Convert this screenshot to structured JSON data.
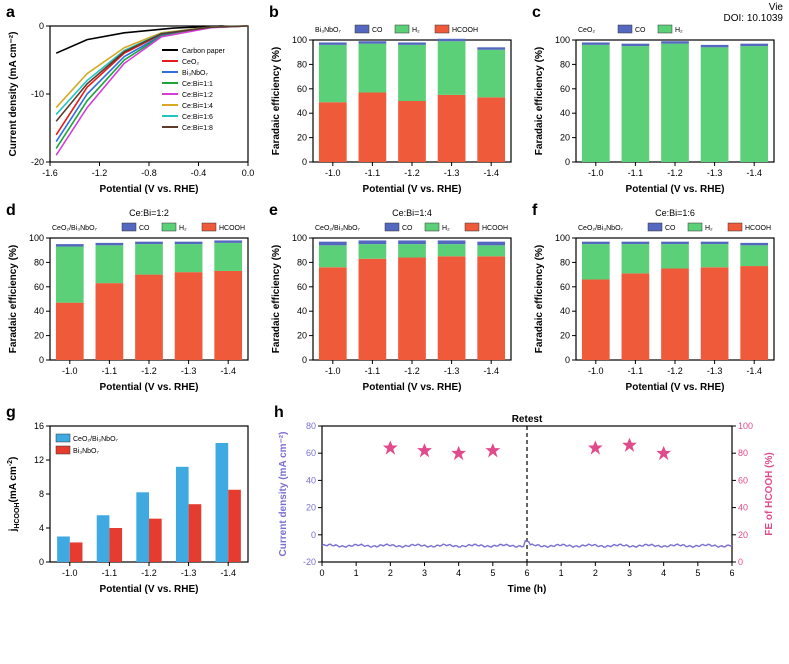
{
  "meta": {
    "view_label": "Vie",
    "doi": "DOI: 10.1039"
  },
  "colors": {
    "co": "#5568c0",
    "h2": "#5bd079",
    "hcooh": "#ef5a3a",
    "ceo2_bar": "#3fa9e2",
    "bi3_bar": "#e63c2f",
    "h_current": "#7a6fd1",
    "h_fe_star": "#e14b8b",
    "grid_gray": "#cccccc",
    "text": "#000000",
    "bg": "#ffffff"
  },
  "panel_a": {
    "letter": "a",
    "xlabel": "Potential (V vs. RHE)",
    "ylabel": "Current density (mA cm⁻²)",
    "xlim": [
      -1.6,
      0.0
    ],
    "xticks": [
      -1.6,
      -1.2,
      -0.8,
      -0.4,
      0.0
    ],
    "ylim": [
      -20,
      0
    ],
    "yticks": [
      -20,
      -10,
      0
    ],
    "series": [
      {
        "label": "Carbon paper",
        "color": "#000000",
        "pts": [
          [
            -1.55,
            -4
          ],
          [
            -1.3,
            -2
          ],
          [
            -1.0,
            -1
          ],
          [
            -0.6,
            -0.3
          ],
          [
            -0.2,
            0
          ]
        ]
      },
      {
        "label": "CeO₂",
        "color": "#e11d1d",
        "pts": [
          [
            -1.55,
            -16
          ],
          [
            -1.3,
            -9
          ],
          [
            -1.0,
            -4
          ],
          [
            -0.7,
            -1.2
          ],
          [
            -0.3,
            -0.2
          ],
          [
            0,
            0
          ]
        ]
      },
      {
        "label": "Bi₃NbO₇",
        "color": "#2b6fe0",
        "pts": [
          [
            -1.55,
            -17
          ],
          [
            -1.3,
            -10
          ],
          [
            -1.0,
            -4.5
          ],
          [
            -0.7,
            -1.4
          ],
          [
            -0.3,
            -0.2
          ],
          [
            0,
            0
          ]
        ]
      },
      {
        "label": "Ce:Bi=1:1",
        "color": "#1aa53a",
        "pts": [
          [
            -1.55,
            -18
          ],
          [
            -1.3,
            -11
          ],
          [
            -1.0,
            -5
          ],
          [
            -0.7,
            -1.5
          ],
          [
            -0.3,
            -0.2
          ],
          [
            0,
            0
          ]
        ]
      },
      {
        "label": "Ce:Bi=1:2",
        "color": "#d53fd8",
        "pts": [
          [
            -1.55,
            -19
          ],
          [
            -1.3,
            -12
          ],
          [
            -1.0,
            -5.5
          ],
          [
            -0.7,
            -1.6
          ],
          [
            -0.3,
            -0.25
          ],
          [
            0,
            0
          ]
        ]
      },
      {
        "label": "Ce:Bi=1:4",
        "color": "#d8a824",
        "pts": [
          [
            -1.55,
            -12
          ],
          [
            -1.3,
            -7
          ],
          [
            -1.0,
            -3.2
          ],
          [
            -0.7,
            -1.0
          ],
          [
            -0.3,
            -0.15
          ],
          [
            0,
            0
          ]
        ]
      },
      {
        "label": "Ce:Bi=1:6",
        "color": "#22c5c0",
        "pts": [
          [
            -1.55,
            -13
          ],
          [
            -1.3,
            -8
          ],
          [
            -1.0,
            -3.6
          ],
          [
            -0.7,
            -1.1
          ],
          [
            -0.3,
            -0.18
          ],
          [
            0,
            0
          ]
        ]
      },
      {
        "label": "Ce:Bi=1:8",
        "color": "#5e3a2a",
        "pts": [
          [
            -1.55,
            -14
          ],
          [
            -1.3,
            -8.5
          ],
          [
            -1.0,
            -3.8
          ],
          [
            -0.7,
            -1.15
          ],
          [
            -0.3,
            -0.18
          ],
          [
            0,
            0
          ]
        ]
      }
    ]
  },
  "fe_common": {
    "xlabel": "Potential (V vs. RHE)",
    "ylabel": "Faradaic efficiency (%)",
    "xcats": [
      "-1.0",
      "-1.1",
      "-1.2",
      "-1.3",
      "-1.4"
    ],
    "ylim": [
      0,
      100
    ],
    "yticks": [
      0,
      20,
      40,
      60,
      80,
      100
    ],
    "legend_labels": {
      "co": "CO",
      "h2": "H₂",
      "hcooh": "HCOOH"
    }
  },
  "panel_b": {
    "letter": "b",
    "title": "Bi₃NbO₇",
    "legend": [
      "co",
      "h2",
      "hcooh"
    ],
    "data": [
      {
        "co": 2,
        "h2": 47,
        "hcooh": 49
      },
      {
        "co": 2,
        "h2": 40,
        "hcooh": 57
      },
      {
        "co": 2,
        "h2": 46,
        "hcooh": 50
      },
      {
        "co": 2,
        "h2": 44,
        "hcooh": 55
      },
      {
        "co": 2,
        "h2": 39,
        "hcooh": 53
      }
    ]
  },
  "panel_c": {
    "letter": "c",
    "title": "CeO₂",
    "legend": [
      "co",
      "h2"
    ],
    "data": [
      {
        "co": 2,
        "h2": 96
      },
      {
        "co": 2,
        "h2": 95
      },
      {
        "co": 2,
        "h2": 97
      },
      {
        "co": 2,
        "h2": 94
      },
      {
        "co": 2,
        "h2": 95
      }
    ]
  },
  "panel_d": {
    "letter": "d",
    "title": "CeO₂/Bi₃NbO₇",
    "subtitle": "Ce:Bi=1:2",
    "legend": [
      "co",
      "h2",
      "hcooh"
    ],
    "data": [
      {
        "co": 2,
        "h2": 46,
        "hcooh": 47
      },
      {
        "co": 2,
        "h2": 31,
        "hcooh": 63
      },
      {
        "co": 2,
        "h2": 25,
        "hcooh": 70
      },
      {
        "co": 2,
        "h2": 23,
        "hcooh": 72
      },
      {
        "co": 2,
        "h2": 23,
        "hcooh": 73
      }
    ]
  },
  "panel_e": {
    "letter": "e",
    "title": "CeO₂/Bi₃NbO₇",
    "subtitle": "Ce:Bi=1:4",
    "legend": [
      "co",
      "h2",
      "hcooh"
    ],
    "data": [
      {
        "co": 3,
        "h2": 18,
        "hcooh": 76
      },
      {
        "co": 3,
        "h2": 12,
        "hcooh": 83
      },
      {
        "co": 3,
        "h2": 11,
        "hcooh": 84
      },
      {
        "co": 3,
        "h2": 10,
        "hcooh": 85
      },
      {
        "co": 3,
        "h2": 9,
        "hcooh": 85
      }
    ]
  },
  "panel_f": {
    "letter": "f",
    "title": "CeO₂/Bi₃NbO₇",
    "subtitle": "Ce:Bi=1:6",
    "legend": [
      "co",
      "h2",
      "hcooh"
    ],
    "data": [
      {
        "co": 2,
        "h2": 29,
        "hcooh": 66
      },
      {
        "co": 2,
        "h2": 24,
        "hcooh": 71
      },
      {
        "co": 2,
        "h2": 20,
        "hcooh": 75
      },
      {
        "co": 2,
        "h2": 19,
        "hcooh": 76
      },
      {
        "co": 2,
        "h2": 17,
        "hcooh": 77
      }
    ]
  },
  "panel_g": {
    "letter": "g",
    "xlabel": "Potential (V vs. RHE)",
    "ylabel": "jₕᶜᵒᵒₕ (mA cm⁻²)",
    "ylabel_html": "j<sub>HCOOH</sub>(mA cm<sup>-2</sup>)",
    "xcats": [
      "-1.0",
      "-1.1",
      "-1.2",
      "-1.3",
      "-1.4"
    ],
    "ylim": [
      0,
      16
    ],
    "yticks": [
      0,
      4,
      8,
      12,
      16
    ],
    "series": [
      {
        "label": "CeO₂/Bi₃NbO₇",
        "color": "#3fa9e2",
        "vals": [
          3.0,
          5.5,
          8.2,
          11.2,
          14.0
        ]
      },
      {
        "label": "Bi₃NbO₇",
        "color": "#e63c2f",
        "vals": [
          2.3,
          4.0,
          5.1,
          6.8,
          8.5
        ]
      }
    ]
  },
  "panel_h": {
    "letter": "h",
    "xlabel": "Time (h)",
    "ylabel_left": "Current density (mA cm⁻²)",
    "ylabel_right": "FE of HCOOH (%)",
    "retest_label": "Retest",
    "ylim_left": [
      -20,
      80
    ],
    "yticks_left": [
      -20,
      0,
      20,
      40,
      60,
      80
    ],
    "ylim_right": [
      0,
      100
    ],
    "yticks_right": [
      0,
      20,
      40,
      60,
      80,
      100
    ],
    "xlim": [
      0,
      12
    ],
    "xticks": [
      0,
      1,
      2,
      3,
      4,
      5,
      6,
      0,
      1,
      2,
      3,
      4,
      5,
      6
    ],
    "vline_at": 6,
    "current_y": -8,
    "fe_stars": [
      [
        2,
        84
      ],
      [
        3,
        82
      ],
      [
        4,
        80
      ],
      [
        5,
        82
      ],
      [
        8,
        84
      ],
      [
        9,
        86
      ],
      [
        10,
        80
      ]
    ]
  }
}
